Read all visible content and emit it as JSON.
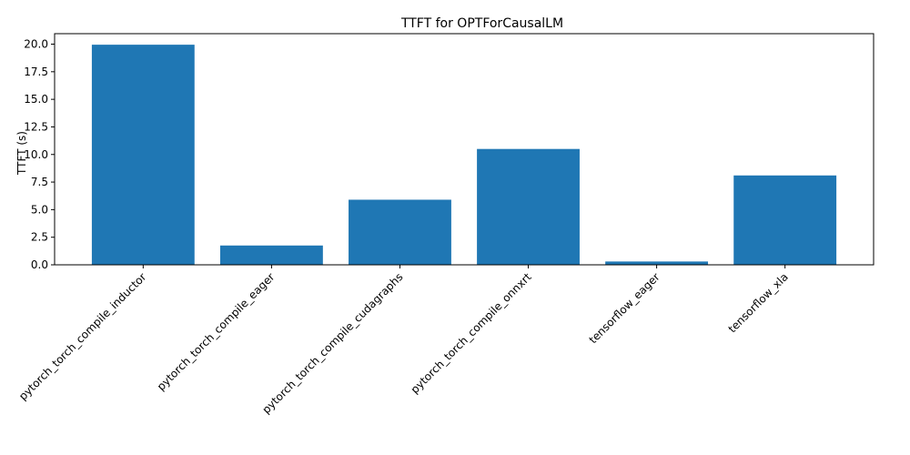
{
  "chart_data": {
    "type": "bar",
    "title": "TTFT for OPTForCausalLM",
    "xlabel": "",
    "ylabel": "TTFT (s)",
    "categories": [
      "pytorch_torch_compile_inductor",
      "pytorch_torch_compile_eager",
      "pytorch_torch_compile_cudagraphs",
      "pytorch_torch_compile_onnxrt",
      "tensorflow_eager",
      "tensorflow_xla"
    ],
    "values": [
      19.95,
      1.75,
      5.9,
      10.5,
      0.3,
      8.1
    ],
    "ylim": [
      0,
      20.95
    ],
    "yticks": [
      "0.0",
      "2.5",
      "5.0",
      "7.5",
      "10.0",
      "12.5",
      "15.0",
      "17.5",
      "20.0"
    ],
    "bar_color": "#1f77b4",
    "grid": false,
    "legend": "none"
  }
}
